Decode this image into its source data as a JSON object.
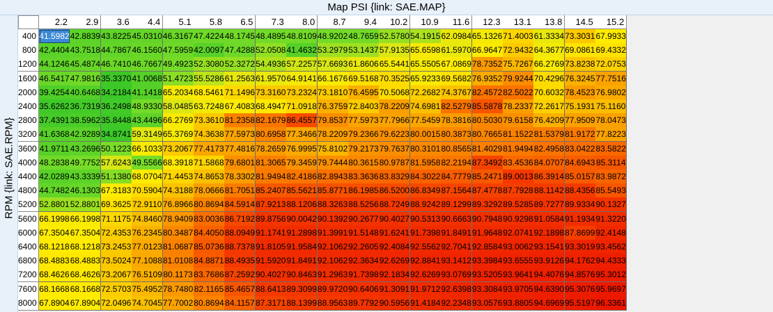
{
  "x_axis_title": "Map PSI {link: SAE.MAP}",
  "y_axis_title": "RPM {link: SAE.RPM}",
  "selected_cell": [
    0,
    0
  ],
  "columns": [
    "2.2",
    "2.9",
    "3.6",
    "4.4",
    "5.1",
    "5.8",
    "6.5",
    "7.3",
    "8.0",
    "8.7",
    "9.4",
    "10.2",
    "10.9",
    "11.6",
    "12.3",
    "13.1",
    "13.8",
    "14.5",
    "15.2"
  ],
  "rows": [
    {
      "rpm": "400",
      "values": [
        "41.5982",
        "42.8839",
        "43.8225",
        "45.0310",
        "46.3167",
        "47.4224",
        "48.1745",
        "48.4895",
        "48.8109",
        "48.9202",
        "48.7659",
        "52.5780",
        "54.1915",
        "62.0984",
        "65.1326",
        "71.4003",
        "61.3334",
        "73.3031",
        "67.9933"
      ]
    },
    {
      "rpm": "800",
      "values": [
        "42.4404",
        "43.7518",
        "44.7867",
        "46.1560",
        "47.5959",
        "42.0097",
        "47.4288",
        "52.0508",
        "41.4632",
        "53.2979",
        "53.1437",
        "57.9135",
        "65.6598",
        "61.5970",
        "66.9647",
        "72.9432",
        "64.3677",
        "69.0861",
        "69.4332"
      ]
    },
    {
      "rpm": "1200",
      "values": [
        "44.1246",
        "45.4874",
        "46.7410",
        "46.7667",
        "49.4923",
        "52.3080",
        "52.3272",
        "54.4936",
        "57.2257",
        "57.6693",
        "61.8606",
        "65.5441",
        "65.5505",
        "67.0869",
        "78.7352",
        "75.7267",
        "66.2769",
        "73.8238",
        "72.0753"
      ]
    },
    {
      "rpm": "1600",
      "values": [
        "46.5417",
        "47.9816",
        "35.3370",
        "41.0068",
        "51.4723",
        "55.5286",
        "61.2563",
        "61.9570",
        "64.9141",
        "66.1676",
        "69.5168",
        "70.3525",
        "65.9233",
        "69.5682",
        "76.9352",
        "79.9244",
        "70.4296",
        "76.3245",
        "77.7516"
      ]
    },
    {
      "rpm": "2000",
      "values": [
        "39.4254",
        "40.6468",
        "34.2184",
        "41.1418",
        "65.2034",
        "68.5461",
        "71.1496",
        "73.3160",
        "73.2324",
        "73.1810",
        "76.4595",
        "70.5068",
        "72.2682",
        "74.3767",
        "82.4572",
        "82.5022",
        "70.6032",
        "78.4523",
        "76.9802"
      ]
    },
    {
      "rpm": "2400",
      "values": [
        "35.6262",
        "36.7319",
        "36.2498",
        "48.9330",
        "58.0485",
        "63.7248",
        "67.4083",
        "68.4947",
        "71.0918",
        "76.3759",
        "72.8403",
        "78.2209",
        "74.6981",
        "82.5279",
        "85.5878",
        "78.2337",
        "72.2617",
        "75.1931",
        "75.1160"
      ]
    },
    {
      "rpm": "2800",
      "values": [
        "37.4391",
        "38.5962",
        "35.8448",
        "43.4496",
        "66.2769",
        "73.3610",
        "81.2358",
        "82.1679",
        "86.4557",
        "79.8537",
        "77.5973",
        "77.7966",
        "77.5459",
        "78.3816",
        "80.5030",
        "79.6158",
        "76.4209",
        "77.9509",
        "78.0473"
      ]
    },
    {
      "rpm": "3200",
      "values": [
        "41.6368",
        "42.9289",
        "34.8741",
        "59.3149",
        "65.3769",
        "74.3638",
        "77.5973",
        "80.6958",
        "77.3466",
        "78.2209",
        "79.2366",
        "79.6223",
        "80.0015",
        "80.3873",
        "80.7665",
        "81.1522",
        "81.5379",
        "81.9172",
        "77.8223"
      ]
    },
    {
      "rpm": "3600",
      "values": [
        "41.9711",
        "43.2696",
        "50.1223",
        "66.1033",
        "73.2067",
        "77.4173",
        "77.4816",
        "78.2659",
        "76.9995",
        "75.8102",
        "79.2173",
        "79.7637",
        "80.3101",
        "80.8565",
        "81.4029",
        "81.9494",
        "82.4958",
        "83.0422",
        "83.5822"
      ]
    },
    {
      "rpm": "4000",
      "values": [
        "48.2838",
        "49.7752",
        "57.6243",
        "49.5566",
        "68.3918",
        "71.5868",
        "79.6801",
        "81.3065",
        "79.3459",
        "79.7444",
        "80.3615",
        "80.9787",
        "81.5958",
        "82.2194",
        "87.3492",
        "83.4536",
        "84.0707",
        "84.6943",
        "85.3114"
      ]
    },
    {
      "rpm": "4400",
      "values": [
        "42.0289",
        "43.3339",
        "51.1380",
        "68.0704",
        "71.4453",
        "74.8653",
        "78.3302",
        "81.9494",
        "82.4186",
        "82.8943",
        "83.3636",
        "83.8329",
        "84.3022",
        "84.7779",
        "85.2471",
        "89.0013",
        "86.3914",
        "85.0157",
        "83.9872"
      ]
    },
    {
      "rpm": "4800",
      "values": [
        "44.7482",
        "46.1303",
        "67.3183",
        "70.5904",
        "74.3188",
        "78.0666",
        "81.7051",
        "85.2407",
        "85.5621",
        "85.8771",
        "86.1985",
        "86.5200",
        "86.8349",
        "87.1564",
        "87.4778",
        "87.7928",
        "88.1142",
        "88.4356",
        "85.5493"
      ]
    },
    {
      "rpm": "5200",
      "values": [
        "52.8801",
        "52.8801",
        "69.3625",
        "72.9110",
        "76.8966",
        "80.8694",
        "84.5914",
        "87.9213",
        "88.1206",
        "88.3263",
        "88.5256",
        "88.7249",
        "88.9242",
        "89.1299",
        "89.3292",
        "89.5285",
        "89.7277",
        "89.9334",
        "90.1327"
      ]
    },
    {
      "rpm": "5600",
      "values": [
        "66.1998",
        "66.1998",
        "71.1175",
        "74.8460",
        "78.9409",
        "83.0036",
        "86.7192",
        "89.8756",
        "90.0042",
        "90.1392",
        "90.2677",
        "90.4027",
        "90.5313",
        "90.6663",
        "90.7948",
        "90.9298",
        "91.0584",
        "91.1934",
        "91.3220"
      ]
    },
    {
      "rpm": "6000",
      "values": [
        "67.3504",
        "67.3504",
        "72.4353",
        "76.2345",
        "80.3487",
        "84.4050",
        "88.0949",
        "91.1741",
        "91.2898",
        "91.3991",
        "91.5148",
        "91.6241",
        "91.7398",
        "91.8491",
        "91.9648",
        "92.0741",
        "92.1898",
        "87.8699",
        "92.4148"
      ]
    },
    {
      "rpm": "6400",
      "values": [
        "68.1218",
        "68.1218",
        "73.2453",
        "77.0123",
        "81.0687",
        "85.0736",
        "88.7378",
        "91.8105",
        "91.9584",
        "92.1062",
        "92.2605",
        "92.4084",
        "92.5562",
        "92.7041",
        "92.8584",
        "93.0062",
        "93.1541",
        "93.3019",
        "93.4562"
      ]
    },
    {
      "rpm": "6800",
      "values": [
        "68.4883",
        "68.4883",
        "73.5024",
        "77.1088",
        "81.0108",
        "84.8871",
        "88.4935",
        "91.5920",
        "91.8491",
        "92.1062",
        "92.3634",
        "92.6269",
        "92.8841",
        "93.1412",
        "93.3984",
        "93.6555",
        "93.9126",
        "94.1762",
        "94.4333"
      ]
    },
    {
      "rpm": "7200",
      "values": [
        "68.4626",
        "68.4626",
        "73.2067",
        "76.5109",
        "80.1173",
        "83.7686",
        "87.2592",
        "90.4027",
        "90.8463",
        "91.2963",
        "91.7398",
        "92.1834",
        "92.6269",
        "93.0769",
        "93.5205",
        "93.9641",
        "94.4076",
        "94.8576",
        "95.3012"
      ]
    },
    {
      "rpm": "7600",
      "values": [
        "68.1668",
        "68.1668",
        "72.5703",
        "75.4952",
        "78.7480",
        "82.1165",
        "85.4657",
        "88.6413",
        "89.3099",
        "89.9720",
        "90.6406",
        "91.3091",
        "91.9712",
        "92.6398",
        "93.3084",
        "93.9705",
        "94.6390",
        "95.3076",
        "95.9697"
      ]
    },
    {
      "rpm": "8000",
      "values": [
        "67.8904",
        "67.8904",
        "72.0496",
        "74.7045",
        "77.7002",
        "80.8694",
        "84.1157",
        "87.3171",
        "88.1399",
        "88.9563",
        "89.7792",
        "90.5956",
        "91.4184",
        "92.2348",
        "93.0576",
        "93.8805",
        "94.6969",
        "95.5197",
        "96.3361"
      ]
    }
  ]
}
